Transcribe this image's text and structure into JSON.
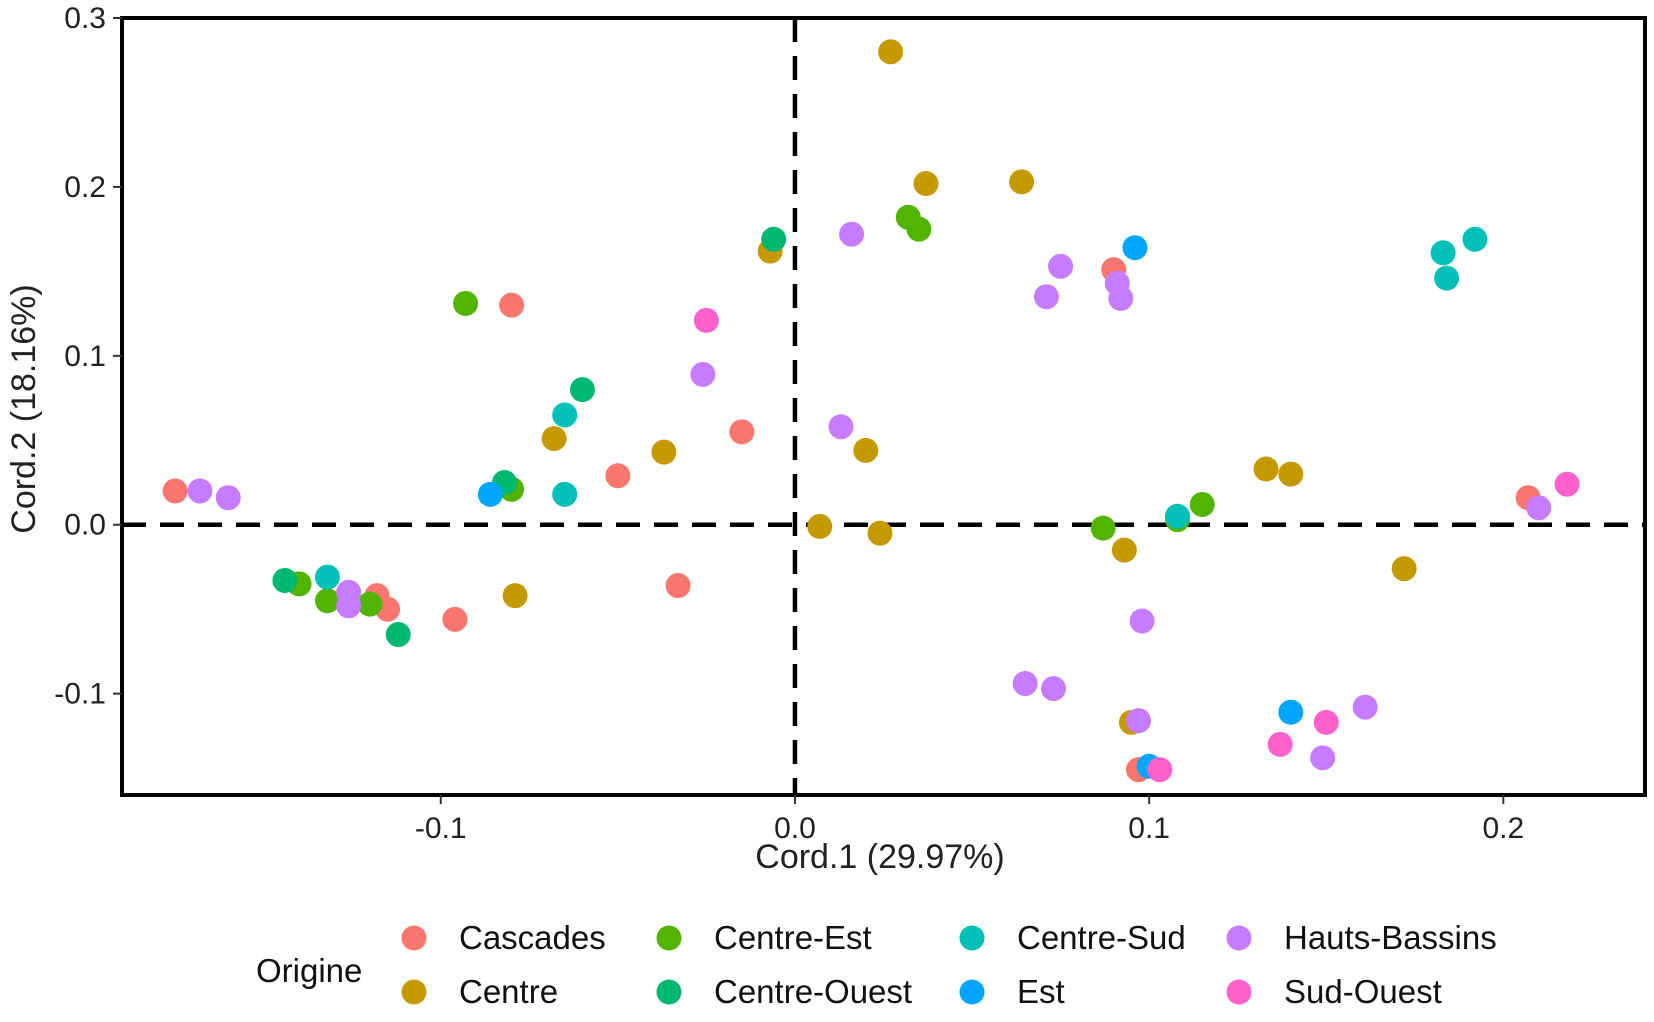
{
  "chart_data": {
    "type": "scatter",
    "xlabel": "Cord.1 (29.97%)",
    "ylabel": "Cord.2 (18.16%)",
    "xlim": [
      -0.19,
      0.24
    ],
    "ylim": [
      -0.16,
      0.3
    ],
    "xticks": [
      {
        "value": -0.1,
        "label": "-0.1"
      },
      {
        "value": 0.0,
        "label": "0.0"
      },
      {
        "value": 0.1,
        "label": "0.1"
      },
      {
        "value": 0.2,
        "label": "0.2"
      }
    ],
    "yticks": [
      {
        "value": 0.3,
        "label": "0.3"
      },
      {
        "value": 0.2,
        "label": "0.2"
      },
      {
        "value": 0.1,
        "label": "0.1"
      },
      {
        "value": 0.0,
        "label": "0.0"
      },
      {
        "value": -0.1,
        "label": "-0.1"
      }
    ],
    "grid": false,
    "reference_lines": {
      "x": 0,
      "y": 0,
      "style": "dashed"
    },
    "legend": {
      "title": "Origine",
      "placement": "bottom"
    },
    "series": [
      {
        "name": "Cascades",
        "color": "#F8766D",
        "points": [
          [
            -0.175,
            0.02
          ],
          [
            -0.08,
            0.13
          ],
          [
            -0.05,
            0.029
          ],
          [
            -0.015,
            0.055
          ],
          [
            -0.033,
            -0.036
          ],
          [
            -0.096,
            -0.056
          ],
          [
            -0.118,
            -0.042
          ],
          [
            -0.115,
            -0.05
          ],
          [
            0.09,
            0.151
          ],
          [
            0.097,
            -0.145
          ],
          [
            0.207,
            0.016
          ]
        ]
      },
      {
        "name": "Centre",
        "color": "#C49A00",
        "points": [
          [
            0.027,
            0.28
          ],
          [
            0.037,
            0.202
          ],
          [
            0.064,
            0.203
          ],
          [
            -0.007,
            0.162
          ],
          [
            -0.068,
            0.051
          ],
          [
            -0.037,
            0.043
          ],
          [
            0.02,
            0.044
          ],
          [
            -0.079,
            -0.042
          ],
          [
            0.007,
            -0.001
          ],
          [
            0.024,
            -0.005
          ],
          [
            0.093,
            -0.015
          ],
          [
            0.133,
            0.033
          ],
          [
            0.14,
            0.03
          ],
          [
            0.172,
            -0.026
          ],
          [
            0.095,
            -0.117
          ]
        ]
      },
      {
        "name": "Centre-Est",
        "color": "#53B400",
        "points": [
          [
            -0.093,
            0.131
          ],
          [
            0.032,
            0.182
          ],
          [
            0.035,
            0.175
          ],
          [
            -0.08,
            0.021
          ],
          [
            -0.14,
            -0.035
          ],
          [
            -0.132,
            -0.045
          ],
          [
            -0.12,
            -0.047
          ],
          [
            0.087,
            -0.002
          ],
          [
            0.108,
            0.003
          ],
          [
            0.115,
            0.012
          ]
        ]
      },
      {
        "name": "Centre-Ouest",
        "color": "#00B871",
        "points": [
          [
            -0.006,
            0.169
          ],
          [
            -0.06,
            0.08
          ],
          [
            -0.082,
            0.025
          ],
          [
            -0.112,
            -0.065
          ],
          [
            -0.144,
            -0.033
          ]
        ]
      },
      {
        "name": "Centre-Sud",
        "color": "#00C0B8",
        "points": [
          [
            0.183,
            0.161
          ],
          [
            0.184,
            0.146
          ],
          [
            0.192,
            0.169
          ],
          [
            -0.065,
            0.065
          ],
          [
            -0.065,
            0.018
          ],
          [
            -0.132,
            -0.031
          ],
          [
            0.108,
            0.005
          ]
        ]
      },
      {
        "name": "Est",
        "color": "#00A5FF",
        "points": [
          [
            0.096,
            0.164
          ],
          [
            -0.086,
            0.018
          ],
          [
            0.1,
            -0.143
          ],
          [
            0.14,
            -0.111
          ]
        ]
      },
      {
        "name": "Hauts-Bassins",
        "color": "#C77CFF",
        "points": [
          [
            -0.168,
            0.02
          ],
          [
            -0.16,
            0.016
          ],
          [
            0.016,
            0.172
          ],
          [
            0.075,
            0.153
          ],
          [
            0.071,
            0.135
          ],
          [
            0.091,
            0.143
          ],
          [
            0.092,
            0.134
          ],
          [
            -0.026,
            0.089
          ],
          [
            0.013,
            0.058
          ],
          [
            0.098,
            -0.057
          ],
          [
            0.065,
            -0.094
          ],
          [
            0.073,
            -0.097
          ],
          [
            0.097,
            -0.116
          ],
          [
            0.149,
            -0.138
          ],
          [
            0.161,
            -0.108
          ],
          [
            0.21,
            0.01
          ],
          [
            -0.126,
            -0.04
          ],
          [
            -0.126,
            -0.048
          ]
        ]
      },
      {
        "name": "Sud-Ouest",
        "color": "#FF61CC",
        "points": [
          [
            -0.025,
            0.121
          ],
          [
            0.218,
            0.024
          ],
          [
            0.137,
            -0.13
          ],
          [
            0.15,
            -0.117
          ],
          [
            0.103,
            -0.145
          ]
        ]
      }
    ]
  }
}
